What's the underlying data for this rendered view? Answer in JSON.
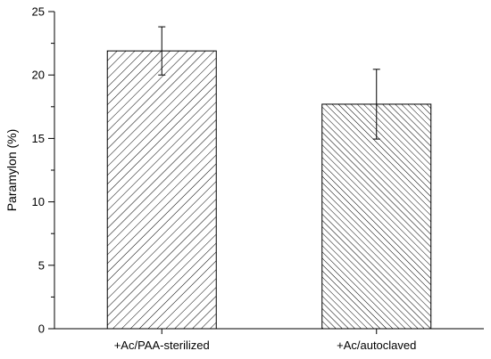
{
  "chart_data": {
    "type": "bar",
    "title": "",
    "xlabel": "",
    "ylabel": "Paramylon (%)",
    "ylim": [
      0,
      25
    ],
    "yticks": [
      0,
      5,
      10,
      15,
      20,
      25
    ],
    "categories": [
      "+Ac/PAA-sterilized",
      "+Ac/autoclaved"
    ],
    "values": [
      21.9,
      17.7
    ],
    "errors": [
      1.9,
      2.75
    ],
    "bar_fill": "hatched",
    "hatch_directions": [
      "forward-diagonal",
      "backward-diagonal"
    ],
    "grid": false,
    "legend": "none",
    "colors": {
      "bar_stroke": "#000000",
      "background": "#ffffff"
    }
  }
}
